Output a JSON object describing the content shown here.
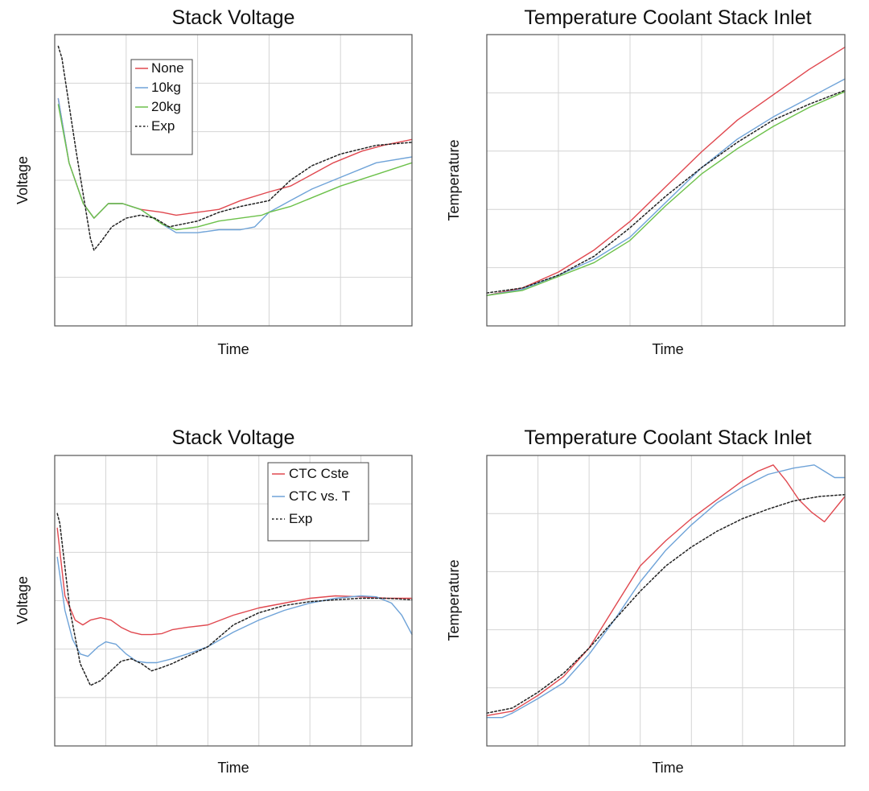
{
  "colors": {
    "red": "#e0484f",
    "blue": "#6fa3d8",
    "green": "#6cc14a",
    "black": "#222222"
  },
  "chart_data": [
    {
      "type": "line",
      "title": "Stack Voltage",
      "xlabel": "Time",
      "ylabel": "Voltage",
      "xlim": [
        0,
        5
      ],
      "ylim": [
        0,
        5
      ],
      "grid": true,
      "ticks_labeled": false,
      "legend": {
        "position": "top-left",
        "entries": [
          "None",
          "10kg",
          "20kg",
          "Exp"
        ]
      },
      "series": [
        {
          "name": "None",
          "color": "red",
          "dash": "solid",
          "x": [
            0.05,
            0.2,
            0.4,
            0.55,
            0.75,
            0.95,
            1.2,
            1.5,
            1.7,
            2.0,
            2.3,
            2.6,
            3.0,
            3.3,
            3.6,
            3.9,
            4.3,
            4.6,
            5.0
          ],
          "y": [
            3.9,
            2.8,
            2.1,
            1.85,
            2.1,
            2.1,
            2.0,
            1.95,
            1.9,
            1.95,
            2.0,
            2.15,
            2.3,
            2.4,
            2.6,
            2.8,
            3.0,
            3.1,
            3.2
          ]
        },
        {
          "name": "10kg",
          "color": "blue",
          "dash": "solid",
          "x": [
            0.05,
            0.2,
            0.4,
            0.55,
            0.75,
            0.95,
            1.2,
            1.5,
            1.7,
            2.0,
            2.3,
            2.6,
            2.8,
            3.0,
            3.3,
            3.6,
            4.0,
            4.5,
            5.0
          ],
          "y": [
            3.9,
            2.8,
            2.1,
            1.85,
            2.1,
            2.1,
            2.0,
            1.75,
            1.6,
            1.6,
            1.65,
            1.65,
            1.7,
            1.95,
            2.15,
            2.35,
            2.55,
            2.8,
            2.9
          ]
        },
        {
          "name": "20kg",
          "color": "green",
          "dash": "solid",
          "x": [
            0.05,
            0.2,
            0.4,
            0.55,
            0.75,
            0.95,
            1.2,
            1.5,
            1.7,
            2.0,
            2.3,
            2.6,
            2.9,
            3.0,
            3.3,
            3.6,
            4.0,
            4.5,
            5.0
          ],
          "y": [
            3.8,
            2.8,
            2.1,
            1.85,
            2.1,
            2.1,
            2.0,
            1.75,
            1.65,
            1.7,
            1.8,
            1.85,
            1.9,
            1.95,
            2.05,
            2.2,
            2.4,
            2.6,
            2.8
          ]
        },
        {
          "name": "Exp",
          "color": "black",
          "dash": "dotted",
          "x": [
            0.05,
            0.1,
            0.3,
            0.5,
            0.55,
            0.65,
            0.8,
            1.0,
            1.2,
            1.4,
            1.6,
            1.8,
            2.0,
            2.3,
            2.6,
            3.0,
            3.3,
            3.6,
            4.0,
            4.5,
            5.0
          ],
          "y": [
            4.8,
            4.6,
            3.0,
            1.5,
            1.3,
            1.45,
            1.7,
            1.85,
            1.9,
            1.85,
            1.7,
            1.75,
            1.8,
            1.95,
            2.05,
            2.15,
            2.5,
            2.75,
            2.95,
            3.1,
            3.15
          ]
        }
      ]
    },
    {
      "type": "line",
      "title": "Temperature Coolant Stack Inlet",
      "xlabel": "Time",
      "ylabel": "Temperature",
      "xlim": [
        0,
        5
      ],
      "ylim": [
        0,
        4.6
      ],
      "grid": true,
      "ticks_labeled": false,
      "series": [
        {
          "color": "red",
          "dash": "solid",
          "x": [
            0,
            0.5,
            1.0,
            1.5,
            2.0,
            2.5,
            3.0,
            3.5,
            4.0,
            4.5,
            5.0
          ],
          "y": [
            0.48,
            0.6,
            0.85,
            1.2,
            1.65,
            2.2,
            2.75,
            3.25,
            3.65,
            4.05,
            4.4
          ]
        },
        {
          "color": "blue",
          "dash": "solid",
          "x": [
            0,
            0.5,
            1.0,
            1.5,
            2.0,
            2.5,
            3.0,
            3.5,
            4.0,
            4.5,
            5.0
          ],
          "y": [
            0.48,
            0.58,
            0.8,
            1.05,
            1.4,
            1.95,
            2.5,
            2.95,
            3.3,
            3.6,
            3.9
          ]
        },
        {
          "color": "green",
          "dash": "solid",
          "x": [
            0,
            0.5,
            1.0,
            1.5,
            2.0,
            2.5,
            3.0,
            3.5,
            4.0,
            4.5,
            5.0
          ],
          "y": [
            0.48,
            0.56,
            0.78,
            1.0,
            1.35,
            1.9,
            2.4,
            2.8,
            3.15,
            3.45,
            3.7
          ]
        },
        {
          "color": "black",
          "dash": "dotted",
          "x": [
            0,
            0.5,
            1.0,
            1.5,
            2.0,
            2.5,
            3.0,
            3.5,
            4.0,
            4.5,
            5.0
          ],
          "y": [
            0.52,
            0.6,
            0.8,
            1.1,
            1.55,
            2.05,
            2.5,
            2.9,
            3.25,
            3.5,
            3.72
          ]
        }
      ]
    },
    {
      "type": "line",
      "title": "Stack Voltage",
      "xlabel": "Time",
      "ylabel": "Voltage",
      "xlim": [
        0,
        7
      ],
      "ylim": [
        0,
        6
      ],
      "grid": true,
      "ticks_labeled": false,
      "legend": {
        "position": "top-right",
        "entries": [
          "CTC Cste",
          "CTC vs. T",
          "Exp"
        ]
      },
      "series": [
        {
          "name": "CTC Cste",
          "color": "red",
          "dash": "solid",
          "x": [
            0.05,
            0.2,
            0.4,
            0.55,
            0.7,
            0.9,
            1.1,
            1.3,
            1.5,
            1.7,
            1.9,
            2.1,
            2.3,
            2.6,
            3.0,
            3.5,
            4.0,
            4.5,
            5.0,
            5.5,
            6.0,
            6.5,
            7.0
          ],
          "y": [
            4.5,
            3.1,
            2.6,
            2.5,
            2.6,
            2.65,
            2.6,
            2.45,
            2.35,
            2.3,
            2.3,
            2.32,
            2.4,
            2.45,
            2.5,
            2.7,
            2.85,
            2.95,
            3.05,
            3.1,
            3.08,
            3.05,
            3.05
          ]
        },
        {
          "name": "CTC vs. T",
          "color": "blue",
          "dash": "solid",
          "x": [
            0.05,
            0.2,
            0.35,
            0.5,
            0.65,
            0.85,
            1.0,
            1.2,
            1.4,
            1.6,
            1.8,
            2.0,
            2.3,
            2.6,
            3.0,
            3.5,
            4.0,
            4.5,
            5.0,
            5.5,
            6.0,
            6.3,
            6.6,
            6.8,
            7.0
          ],
          "y": [
            3.9,
            2.8,
            2.2,
            1.9,
            1.85,
            2.05,
            2.15,
            2.1,
            1.9,
            1.75,
            1.72,
            1.72,
            1.8,
            1.9,
            2.05,
            2.35,
            2.6,
            2.8,
            2.95,
            3.05,
            3.1,
            3.08,
            2.95,
            2.7,
            2.3
          ]
        },
        {
          "name": "Exp",
          "color": "black",
          "dash": "dotted",
          "x": [
            0.05,
            0.1,
            0.3,
            0.5,
            0.7,
            0.9,
            1.1,
            1.3,
            1.5,
            1.7,
            1.9,
            2.1,
            2.3,
            2.6,
            3.0,
            3.5,
            4.0,
            4.5,
            5.0,
            5.5,
            6.0,
            6.5,
            7.0
          ],
          "y": [
            4.8,
            4.6,
            2.8,
            1.7,
            1.25,
            1.35,
            1.55,
            1.75,
            1.8,
            1.7,
            1.55,
            1.62,
            1.7,
            1.85,
            2.05,
            2.5,
            2.75,
            2.9,
            2.98,
            3.02,
            3.05,
            3.05,
            3.02
          ]
        }
      ]
    },
    {
      "type": "line",
      "title": "Temperature Coolant Stack Inlet",
      "xlabel": "Time",
      "ylabel": "Temperature",
      "xlim": [
        0,
        7
      ],
      "ylim": [
        0,
        4.6
      ],
      "grid": true,
      "ticks_labeled": false,
      "series": [
        {
          "color": "red",
          "dash": "solid",
          "x": [
            0,
            0.5,
            1.0,
            1.5,
            2.0,
            2.5,
            3.0,
            3.5,
            4.0,
            4.5,
            5.0,
            5.3,
            5.6,
            5.85,
            6.1,
            6.35,
            6.6,
            7.0
          ],
          "y": [
            0.48,
            0.55,
            0.8,
            1.1,
            1.55,
            2.2,
            2.85,
            3.25,
            3.6,
            3.9,
            4.2,
            4.35,
            4.45,
            4.2,
            3.9,
            3.7,
            3.55,
            3.95
          ]
        },
        {
          "color": "blue",
          "dash": "solid",
          "x": [
            0,
            0.3,
            0.5,
            1.0,
            1.5,
            2.0,
            2.5,
            3.0,
            3.5,
            4.0,
            4.5,
            5.0,
            5.5,
            6.0,
            6.4,
            6.6,
            6.8,
            7.0
          ],
          "y": [
            0.45,
            0.45,
            0.52,
            0.75,
            1.0,
            1.45,
            2.0,
            2.6,
            3.1,
            3.5,
            3.85,
            4.1,
            4.3,
            4.4,
            4.45,
            4.35,
            4.25,
            4.25
          ]
        },
        {
          "color": "black",
          "dash": "dotted",
          "x": [
            0,
            0.5,
            1.0,
            1.5,
            2.0,
            2.5,
            3.0,
            3.5,
            4.0,
            4.5,
            5.0,
            5.5,
            6.0,
            6.5,
            7.0
          ],
          "y": [
            0.52,
            0.6,
            0.85,
            1.15,
            1.55,
            2.0,
            2.45,
            2.85,
            3.15,
            3.4,
            3.6,
            3.75,
            3.88,
            3.95,
            3.98
          ]
        }
      ]
    }
  ]
}
